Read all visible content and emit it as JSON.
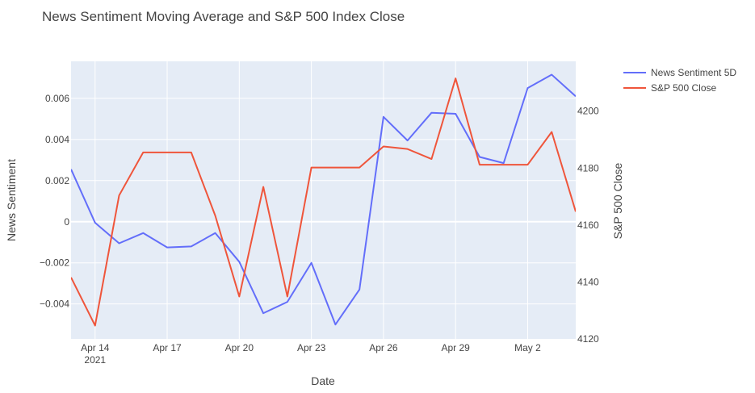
{
  "chart_data": {
    "type": "line",
    "title": "News Sentiment Moving Average and S&P 500 Index Close",
    "xlabel": "Date",
    "ylabel": "News Sentiment",
    "y2label": "S&P 500 Close",
    "x": [
      "2021-04-13",
      "2021-04-14",
      "2021-04-15",
      "2021-04-16",
      "2021-04-17",
      "2021-04-18",
      "2021-04-19",
      "2021-04-20",
      "2021-04-21",
      "2021-04-22",
      "2021-04-23",
      "2021-04-24",
      "2021-04-25",
      "2021-04-26",
      "2021-04-27",
      "2021-04-28",
      "2021-04-29",
      "2021-04-30",
      "2021-05-01",
      "2021-05-02",
      "2021-05-03",
      "2021-05-04"
    ],
    "xlim": [
      "2021-04-13",
      "2021-05-04"
    ],
    "x_ticks": [
      {
        "date": "2021-04-14",
        "label": "Apr 14",
        "sublabel": "2021"
      },
      {
        "date": "2021-04-17",
        "label": "Apr 17",
        "sublabel": ""
      },
      {
        "date": "2021-04-20",
        "label": "Apr 20",
        "sublabel": ""
      },
      {
        "date": "2021-04-23",
        "label": "Apr 23",
        "sublabel": ""
      },
      {
        "date": "2021-04-26",
        "label": "Apr 26",
        "sublabel": ""
      },
      {
        "date": "2021-04-29",
        "label": "Apr 29",
        "sublabel": ""
      },
      {
        "date": "2021-05-02",
        "label": "May 2",
        "sublabel": ""
      }
    ],
    "ylim": [
      -0.0057,
      0.0078
    ],
    "y_ticks": [
      {
        "value": 0.006,
        "label": "0.006"
      },
      {
        "value": 0.004,
        "label": "0.004"
      },
      {
        "value": 0.002,
        "label": "0.002"
      },
      {
        "value": 0,
        "label": "0"
      },
      {
        "value": -0.002,
        "label": "−0.002"
      },
      {
        "value": -0.004,
        "label": "−0.004"
      }
    ],
    "y2lim": [
      4120,
      4217.5
    ],
    "y2_ticks": [
      {
        "value": 4200,
        "label": "4200"
      },
      {
        "value": 4180,
        "label": "4180"
      },
      {
        "value": 4160,
        "label": "4160"
      },
      {
        "value": 4140,
        "label": "4140"
      },
      {
        "value": 4120,
        "label": "4120"
      }
    ],
    "series": [
      {
        "name": "News Sentiment 5D",
        "axis": "y",
        "color": "#636efa",
        "values": [
          0.00255,
          -5e-05,
          -0.00105,
          -0.00055,
          -0.00125,
          -0.0012,
          -0.00055,
          -0.00195,
          -0.00445,
          -0.0039,
          -0.002,
          -0.005,
          -0.0033,
          0.0051,
          0.00395,
          0.0053,
          0.00525,
          0.00315,
          0.00285,
          0.0065,
          0.00715,
          0.0061
        ]
      },
      {
        "name": "S&P 500 Close",
        "axis": "y2",
        "color": "#ef553b",
        "values": [
          4141.6,
          4124.7,
          4170.4,
          4185.5,
          4185.5,
          4185.5,
          4163.3,
          4134.9,
          4173.4,
          4134.9,
          4180.2,
          4180.2,
          4180.2,
          4187.6,
          4186.7,
          4183.2,
          4211.5,
          4181.2,
          4181.2,
          4181.2,
          4192.7,
          4164.7
        ]
      }
    ],
    "grid": true,
    "legend": "top-right"
  }
}
